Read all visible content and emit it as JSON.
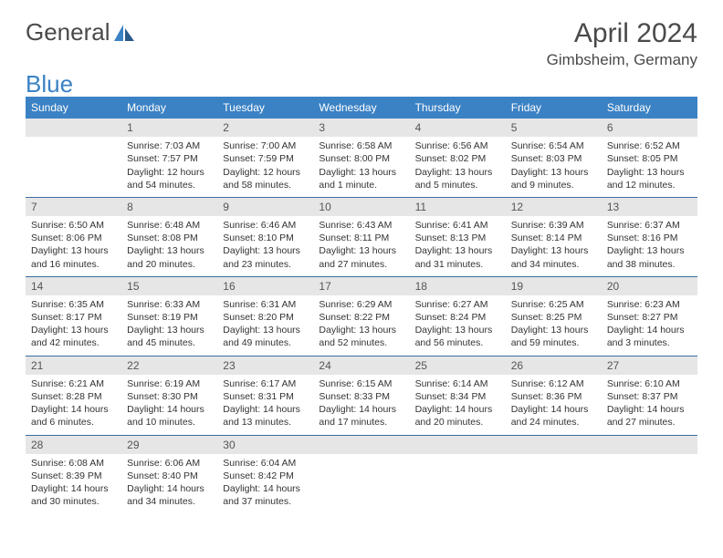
{
  "logo": {
    "text1": "General",
    "text2": "Blue"
  },
  "header": {
    "month": "April 2024",
    "location": "Gimbsheim, Germany"
  },
  "weekdays": [
    "Sunday",
    "Monday",
    "Tuesday",
    "Wednesday",
    "Thursday",
    "Friday",
    "Saturday"
  ],
  "colors": {
    "header_bg": "#3b82c4",
    "header_text": "#ffffff",
    "daynum_bg": "#e6e6e6",
    "border": "#3b6ea0"
  },
  "weeks": [
    [
      {
        "n": "",
        "sr": "",
        "ss": "",
        "dl": ""
      },
      {
        "n": "1",
        "sr": "Sunrise: 7:03 AM",
        "ss": "Sunset: 7:57 PM",
        "dl": "Daylight: 12 hours and 54 minutes."
      },
      {
        "n": "2",
        "sr": "Sunrise: 7:00 AM",
        "ss": "Sunset: 7:59 PM",
        "dl": "Daylight: 12 hours and 58 minutes."
      },
      {
        "n": "3",
        "sr": "Sunrise: 6:58 AM",
        "ss": "Sunset: 8:00 PM",
        "dl": "Daylight: 13 hours and 1 minute."
      },
      {
        "n": "4",
        "sr": "Sunrise: 6:56 AM",
        "ss": "Sunset: 8:02 PM",
        "dl": "Daylight: 13 hours and 5 minutes."
      },
      {
        "n": "5",
        "sr": "Sunrise: 6:54 AM",
        "ss": "Sunset: 8:03 PM",
        "dl": "Daylight: 13 hours and 9 minutes."
      },
      {
        "n": "6",
        "sr": "Sunrise: 6:52 AM",
        "ss": "Sunset: 8:05 PM",
        "dl": "Daylight: 13 hours and 12 minutes."
      }
    ],
    [
      {
        "n": "7",
        "sr": "Sunrise: 6:50 AM",
        "ss": "Sunset: 8:06 PM",
        "dl": "Daylight: 13 hours and 16 minutes."
      },
      {
        "n": "8",
        "sr": "Sunrise: 6:48 AM",
        "ss": "Sunset: 8:08 PM",
        "dl": "Daylight: 13 hours and 20 minutes."
      },
      {
        "n": "9",
        "sr": "Sunrise: 6:46 AM",
        "ss": "Sunset: 8:10 PM",
        "dl": "Daylight: 13 hours and 23 minutes."
      },
      {
        "n": "10",
        "sr": "Sunrise: 6:43 AM",
        "ss": "Sunset: 8:11 PM",
        "dl": "Daylight: 13 hours and 27 minutes."
      },
      {
        "n": "11",
        "sr": "Sunrise: 6:41 AM",
        "ss": "Sunset: 8:13 PM",
        "dl": "Daylight: 13 hours and 31 minutes."
      },
      {
        "n": "12",
        "sr": "Sunrise: 6:39 AM",
        "ss": "Sunset: 8:14 PM",
        "dl": "Daylight: 13 hours and 34 minutes."
      },
      {
        "n": "13",
        "sr": "Sunrise: 6:37 AM",
        "ss": "Sunset: 8:16 PM",
        "dl": "Daylight: 13 hours and 38 minutes."
      }
    ],
    [
      {
        "n": "14",
        "sr": "Sunrise: 6:35 AM",
        "ss": "Sunset: 8:17 PM",
        "dl": "Daylight: 13 hours and 42 minutes."
      },
      {
        "n": "15",
        "sr": "Sunrise: 6:33 AM",
        "ss": "Sunset: 8:19 PM",
        "dl": "Daylight: 13 hours and 45 minutes."
      },
      {
        "n": "16",
        "sr": "Sunrise: 6:31 AM",
        "ss": "Sunset: 8:20 PM",
        "dl": "Daylight: 13 hours and 49 minutes."
      },
      {
        "n": "17",
        "sr": "Sunrise: 6:29 AM",
        "ss": "Sunset: 8:22 PM",
        "dl": "Daylight: 13 hours and 52 minutes."
      },
      {
        "n": "18",
        "sr": "Sunrise: 6:27 AM",
        "ss": "Sunset: 8:24 PM",
        "dl": "Daylight: 13 hours and 56 minutes."
      },
      {
        "n": "19",
        "sr": "Sunrise: 6:25 AM",
        "ss": "Sunset: 8:25 PM",
        "dl": "Daylight: 13 hours and 59 minutes."
      },
      {
        "n": "20",
        "sr": "Sunrise: 6:23 AM",
        "ss": "Sunset: 8:27 PM",
        "dl": "Daylight: 14 hours and 3 minutes."
      }
    ],
    [
      {
        "n": "21",
        "sr": "Sunrise: 6:21 AM",
        "ss": "Sunset: 8:28 PM",
        "dl": "Daylight: 14 hours and 6 minutes."
      },
      {
        "n": "22",
        "sr": "Sunrise: 6:19 AM",
        "ss": "Sunset: 8:30 PM",
        "dl": "Daylight: 14 hours and 10 minutes."
      },
      {
        "n": "23",
        "sr": "Sunrise: 6:17 AM",
        "ss": "Sunset: 8:31 PM",
        "dl": "Daylight: 14 hours and 13 minutes."
      },
      {
        "n": "24",
        "sr": "Sunrise: 6:15 AM",
        "ss": "Sunset: 8:33 PM",
        "dl": "Daylight: 14 hours and 17 minutes."
      },
      {
        "n": "25",
        "sr": "Sunrise: 6:14 AM",
        "ss": "Sunset: 8:34 PM",
        "dl": "Daylight: 14 hours and 20 minutes."
      },
      {
        "n": "26",
        "sr": "Sunrise: 6:12 AM",
        "ss": "Sunset: 8:36 PM",
        "dl": "Daylight: 14 hours and 24 minutes."
      },
      {
        "n": "27",
        "sr": "Sunrise: 6:10 AM",
        "ss": "Sunset: 8:37 PM",
        "dl": "Daylight: 14 hours and 27 minutes."
      }
    ],
    [
      {
        "n": "28",
        "sr": "Sunrise: 6:08 AM",
        "ss": "Sunset: 8:39 PM",
        "dl": "Daylight: 14 hours and 30 minutes."
      },
      {
        "n": "29",
        "sr": "Sunrise: 6:06 AM",
        "ss": "Sunset: 8:40 PM",
        "dl": "Daylight: 14 hours and 34 minutes."
      },
      {
        "n": "30",
        "sr": "Sunrise: 6:04 AM",
        "ss": "Sunset: 8:42 PM",
        "dl": "Daylight: 14 hours and 37 minutes."
      },
      {
        "n": "",
        "sr": "",
        "ss": "",
        "dl": ""
      },
      {
        "n": "",
        "sr": "",
        "ss": "",
        "dl": ""
      },
      {
        "n": "",
        "sr": "",
        "ss": "",
        "dl": ""
      },
      {
        "n": "",
        "sr": "",
        "ss": "",
        "dl": ""
      }
    ]
  ]
}
